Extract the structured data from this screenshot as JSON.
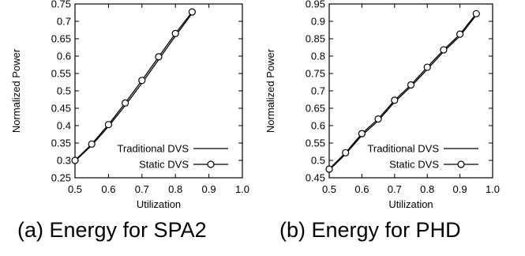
{
  "captions": {
    "a": "(a) Energy for SPA2",
    "b": "(b) Energy for PHD"
  },
  "chart_data": [
    {
      "type": "line",
      "title": "",
      "xlabel": "Utilization",
      "ylabel": "Normalized Power",
      "xlim": [
        0.5,
        1.0
      ],
      "ylim": [
        0.25,
        0.75
      ],
      "xticks": [
        "0.5",
        "0.6",
        "0.7",
        "0.8",
        "0.9",
        "1.0"
      ],
      "yticks": [
        "0.25",
        "0.3",
        "0.35",
        "0.4",
        "0.45",
        "0.5",
        "0.55",
        "0.6",
        "0.65",
        "0.7",
        "0.75"
      ],
      "grid": false,
      "legend_position": "bottom-right",
      "series": [
        {
          "name": "Traditional DVS",
          "marker": "none",
          "x": [
            0.5,
            0.55,
            0.6,
            0.65,
            0.7,
            0.75,
            0.8,
            0.85
          ],
          "y": [
            0.298,
            0.343,
            0.398,
            0.458,
            0.522,
            0.59,
            0.658,
            0.723
          ]
        },
        {
          "name": "Static DVS",
          "marker": "circle",
          "x": [
            0.5,
            0.55,
            0.6,
            0.65,
            0.7,
            0.75,
            0.8,
            0.85
          ],
          "y": [
            0.3,
            0.347,
            0.403,
            0.465,
            0.53,
            0.598,
            0.665,
            0.727
          ]
        }
      ]
    },
    {
      "type": "line",
      "title": "",
      "xlabel": "Utilization",
      "ylabel": "Normalized Power",
      "xlim": [
        0.5,
        1.0
      ],
      "ylim": [
        0.45,
        0.95
      ],
      "xticks": [
        "0.5",
        "0.6",
        "0.7",
        "0.8",
        "0.9",
        "1.0"
      ],
      "yticks": [
        "0.45",
        "0.5",
        "0.55",
        "0.6",
        "0.65",
        "0.7",
        "0.75",
        "0.8",
        "0.85",
        "0.9",
        "0.95"
      ],
      "grid": false,
      "legend_position": "bottom-right",
      "series": [
        {
          "name": "Traditional DVS",
          "marker": "none",
          "x": [
            0.5,
            0.55,
            0.6,
            0.65,
            0.7,
            0.75,
            0.8,
            0.85,
            0.9,
            0.95
          ],
          "y": [
            0.472,
            0.518,
            0.572,
            0.614,
            0.668,
            0.712,
            0.762,
            0.813,
            0.858,
            0.918
          ]
        },
        {
          "name": "Static DVS",
          "marker": "circle",
          "x": [
            0.5,
            0.55,
            0.6,
            0.65,
            0.7,
            0.75,
            0.8,
            0.85,
            0.9,
            0.95
          ],
          "y": [
            0.475,
            0.522,
            0.577,
            0.619,
            0.673,
            0.717,
            0.768,
            0.818,
            0.863,
            0.922
          ]
        }
      ]
    }
  ]
}
